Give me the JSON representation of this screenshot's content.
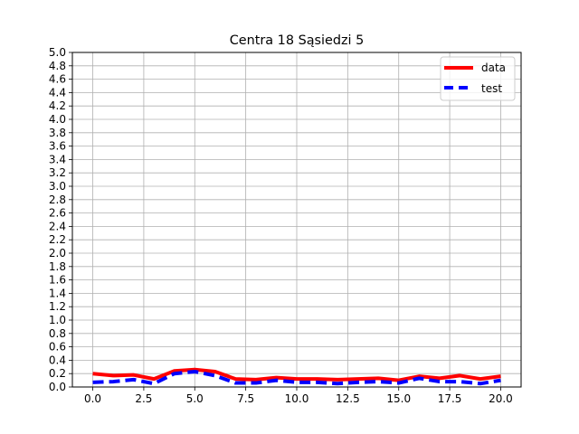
{
  "chart_data": {
    "type": "line",
    "title": "Centra 18 Sąsiedzi 5",
    "xlabel": "",
    "ylabel": "",
    "xlim": [
      -1.0,
      21.0
    ],
    "ylim": [
      0.0,
      5.0
    ],
    "grid": true,
    "legend_placement": "top-right",
    "x_ticks": [
      "0.0",
      "2.5",
      "5.0",
      "7.5",
      "10.0",
      "12.5",
      "15.0",
      "17.5",
      "20.0"
    ],
    "y_ticks": [
      "0.0",
      "0.2",
      "0.4",
      "0.6",
      "0.8",
      "1.0",
      "1.2",
      "1.4",
      "1.6",
      "1.8",
      "2.0",
      "2.2",
      "2.4",
      "2.6",
      "2.8",
      "3.0",
      "3.2",
      "3.4",
      "3.6",
      "3.8",
      "4.0",
      "4.2",
      "4.4",
      "4.6",
      "4.8",
      "5.0"
    ],
    "x": [
      0,
      1,
      2,
      3,
      4,
      5,
      6,
      7,
      8,
      9,
      10,
      11,
      12,
      13,
      14,
      15,
      16,
      17,
      18,
      19,
      20
    ],
    "series": [
      {
        "name": "data",
        "color": "#ff0000",
        "style": "solid",
        "values": [
          0.2,
          0.17,
          0.18,
          0.12,
          0.24,
          0.26,
          0.23,
          0.12,
          0.11,
          0.14,
          0.12,
          0.12,
          0.11,
          0.12,
          0.13,
          0.1,
          0.16,
          0.13,
          0.17,
          0.12,
          0.16
        ]
      },
      {
        "name": "test",
        "color": "#0000ff",
        "style": "dashed",
        "values": [
          0.07,
          0.08,
          0.11,
          0.05,
          0.2,
          0.23,
          0.17,
          0.06,
          0.06,
          0.1,
          0.07,
          0.07,
          0.05,
          0.07,
          0.08,
          0.06,
          0.13,
          0.08,
          0.08,
          0.05,
          0.1
        ]
      }
    ]
  }
}
